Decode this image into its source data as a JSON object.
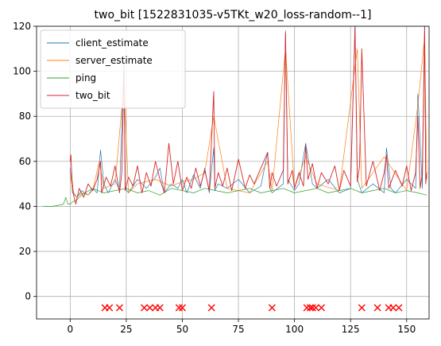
{
  "chart_data": {
    "type": "line",
    "title": "two_bit [1522831035-v5TKt_w20_loss-random--1]",
    "xlabel": "",
    "ylabel": "",
    "xlim": [
      -15,
      160
    ],
    "ylim": [
      -10,
      120
    ],
    "xticks": [
      0,
      25,
      50,
      75,
      100,
      125,
      150
    ],
    "xtick_labels": [
      "0",
      "25",
      "50",
      "75",
      "100",
      "125",
      "150"
    ],
    "yticks": [
      0,
      20,
      40,
      60,
      80,
      100,
      120
    ],
    "ytick_labels": [
      "0",
      "20",
      "40",
      "60",
      "80",
      "100",
      "120"
    ],
    "grid": true,
    "legend": "upper-left",
    "series": [
      {
        "name": "client_estimate",
        "color": "#1f77b4",
        "x": [
          0,
          0.5,
          1,
          3,
          5,
          8,
          10,
          12,
          13.5,
          15,
          17,
          20,
          22,
          24,
          24.5,
          26,
          30,
          34,
          38,
          40,
          42,
          45,
          48,
          50,
          52,
          55,
          58,
          60,
          62,
          64,
          64.5,
          66,
          70,
          75,
          80,
          85,
          88,
          89,
          90,
          95,
          96,
          97,
          100,
          102,
          105,
          108,
          110,
          115,
          120,
          125,
          127,
          128,
          130,
          135,
          140,
          141,
          143,
          145,
          150,
          154,
          155,
          157,
          158,
          158.5,
          159
        ],
        "y": [
          57,
          52,
          46,
          44,
          47,
          45,
          48,
          46,
          65,
          50,
          46,
          52,
          47,
          105,
          48,
          46,
          52,
          48,
          53,
          57,
          46,
          50,
          48,
          52,
          46,
          54,
          48,
          57,
          46,
          66,
          47,
          50,
          48,
          52,
          46,
          49,
          64,
          48,
          46,
          50,
          118,
          52,
          47,
          50,
          68,
          50,
          48,
          52,
          46,
          48,
          120,
          52,
          46,
          50,
          46,
          66,
          48,
          46,
          52,
          48,
          90,
          48,
          120,
          52,
          55
        ]
      },
      {
        "name": "server_estimate",
        "color": "#ff7f0e",
        "x": [
          0,
          1,
          3,
          5,
          8,
          10,
          13,
          15,
          20,
          24,
          26,
          30,
          38,
          45,
          50,
          55,
          60,
          64,
          70,
          80,
          88,
          90,
          96,
          100,
          105,
          110,
          120,
          128,
          130,
          140,
          150,
          155,
          158,
          159
        ],
        "y": [
          55,
          47,
          44,
          46,
          45,
          47,
          60,
          48,
          50,
          95,
          46,
          50,
          52,
          49,
          51,
          52,
          55,
          80,
          48,
          46,
          60,
          47,
          110,
          48,
          62,
          50,
          47,
          110,
          48,
          62,
          47,
          85,
          115,
          52
        ]
      },
      {
        "name": "ping",
        "color": "#2ca02c",
        "x": [
          -12,
          -8,
          -5,
          -3,
          -2,
          -1,
          0,
          1,
          3,
          5,
          10,
          15,
          20,
          25,
          30,
          35,
          40,
          45,
          50,
          55,
          60,
          65,
          70,
          75,
          80,
          85,
          90,
          95,
          100,
          105,
          110,
          115,
          120,
          125,
          130,
          135,
          140,
          145,
          150,
          155,
          159
        ],
        "y": [
          40,
          40,
          40.5,
          41,
          44,
          41,
          41,
          42,
          43,
          45,
          48,
          46,
          47,
          48,
          46,
          47,
          45,
          48,
          47,
          46,
          48,
          47,
          46,
          47,
          48,
          46,
          47,
          48,
          46,
          47,
          48,
          46,
          47,
          48,
          46,
          47,
          48,
          46,
          47,
          46,
          45
        ]
      },
      {
        "name": "two_bit",
        "color": "#d62728",
        "x": [
          0,
          0.3,
          0.8,
          1.5,
          2.5,
          4,
          6,
          8,
          10,
          12,
          13.5,
          14,
          16,
          18,
          20,
          22,
          23,
          24,
          24.5,
          26,
          28,
          30,
          32,
          34,
          36,
          38,
          40,
          42,
          44,
          46,
          48,
          50,
          52,
          54,
          56,
          58,
          60,
          62,
          64,
          64.5,
          66,
          68,
          70,
          72,
          75,
          78,
          80,
          82,
          85,
          88,
          89,
          90,
          92,
          95,
          96,
          97,
          99,
          100,
          102,
          104,
          105,
          106,
          108,
          110,
          112,
          115,
          118,
          120,
          122,
          125,
          127,
          128,
          129,
          130,
          132,
          135,
          138,
          140,
          141,
          142,
          145,
          148,
          150,
          152,
          154,
          155,
          156,
          157,
          158,
          158.5,
          159
        ],
        "y": [
          60,
          63,
          52,
          45,
          41,
          48,
          44,
          50,
          47,
          52,
          60,
          46,
          53,
          49,
          58,
          46,
          55,
          102,
          47,
          53,
          49,
          58,
          46,
          55,
          49,
          60,
          52,
          46,
          68,
          50,
          60,
          47,
          53,
          48,
          57,
          49,
          56,
          47,
          91,
          48,
          55,
          49,
          57,
          47,
          61,
          48,
          54,
          50,
          57,
          64,
          48,
          55,
          49,
          56,
          117,
          50,
          56,
          48,
          55,
          49,
          67,
          52,
          59,
          48,
          55,
          50,
          58,
          47,
          56,
          49,
          120,
          51,
          58,
          110,
          49,
          60,
          47,
          55,
          63,
          48,
          56,
          49,
          58,
          47,
          55,
          80,
          48,
          55,
          120,
          50,
          55
        ]
      },
      {
        "name": "",
        "type": "scatter",
        "marker": "x",
        "color": "#ff0000",
        "x": [
          15.5,
          17.5,
          22,
          33,
          35.5,
          38,
          40,
          48.5,
          50,
          63,
          90,
          105.5,
          107,
          108,
          109.5,
          112,
          130,
          137,
          142,
          144,
          146.5
        ],
        "y": [
          -5,
          -5,
          -5,
          -5,
          -5,
          -5,
          -5,
          -5,
          -5,
          -5,
          -5,
          -5,
          -5,
          -5,
          -5,
          -5,
          -5,
          -5,
          -5,
          -5,
          -5
        ]
      }
    ]
  }
}
